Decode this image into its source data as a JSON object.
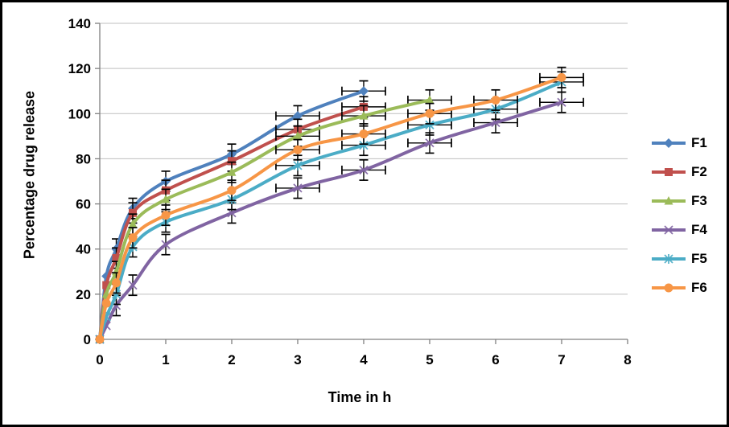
{
  "chart_data": {
    "type": "line",
    "title": "",
    "xlabel": "Time in h",
    "ylabel": "Percentage drug release",
    "xlim": [
      0,
      8
    ],
    "ylim": [
      0,
      140
    ],
    "x_ticks": [
      0,
      1,
      2,
      3,
      4,
      5,
      6,
      7,
      8
    ],
    "y_ticks": [
      0,
      20,
      40,
      60,
      80,
      100,
      120,
      140
    ],
    "grid": "horizontal",
    "smooth_lines": true,
    "legend_position": "right",
    "colors": {
      "gridline": "#BFBFBF",
      "axis": "#808080",
      "error_bar": "#000000",
      "text": "#000000"
    },
    "error_bars": {
      "y_magnitude": 4.5,
      "y_applies_from_x": 0.25,
      "x_magnitude": 0.33,
      "x_applies_from_x": 3
    },
    "series": [
      {
        "name": "F1",
        "color": "#4F81BD",
        "marker": "diamond",
        "x": [
          0,
          0.1,
          0.25,
          0.5,
          1,
          2,
          3,
          4
        ],
        "y": [
          0,
          28,
          40,
          58,
          70,
          82,
          99,
          110
        ]
      },
      {
        "name": "F2",
        "color": "#C0504D",
        "marker": "square",
        "x": [
          0,
          0.1,
          0.25,
          0.5,
          1,
          2,
          3,
          4
        ],
        "y": [
          0,
          24,
          36,
          56,
          66,
          79,
          93,
          103
        ]
      },
      {
        "name": "F3",
        "color": "#9BBB59",
        "marker": "triangle",
        "x": [
          0,
          0.1,
          0.25,
          0.5,
          1,
          2,
          3,
          4,
          5
        ],
        "y": [
          0,
          20,
          30,
          51,
          62,
          74,
          90,
          99,
          106
        ]
      },
      {
        "name": "F4",
        "color": "#8064A2",
        "marker": "x",
        "x": [
          0,
          0.1,
          0.25,
          0.5,
          1,
          2,
          3,
          4,
          5,
          6,
          7
        ],
        "y": [
          0,
          6,
          15,
          24,
          42,
          56,
          67,
          75,
          87,
          96,
          105
        ]
      },
      {
        "name": "F5",
        "color": "#4BACC6",
        "marker": "asterisk",
        "x": [
          0,
          0.1,
          0.25,
          0.5,
          1,
          2,
          3,
          4,
          5,
          6,
          7
        ],
        "y": [
          0,
          10,
          20,
          41,
          52,
          62,
          77,
          86,
          95,
          102,
          114
        ]
      },
      {
        "name": "F6",
        "color": "#F79646",
        "marker": "circle",
        "x": [
          0,
          0.1,
          0.25,
          0.5,
          1,
          2,
          3,
          4,
          5,
          6,
          7
        ],
        "y": [
          0,
          16,
          25,
          45,
          55,
          66,
          84,
          91,
          100,
          106,
          116
        ]
      }
    ]
  }
}
